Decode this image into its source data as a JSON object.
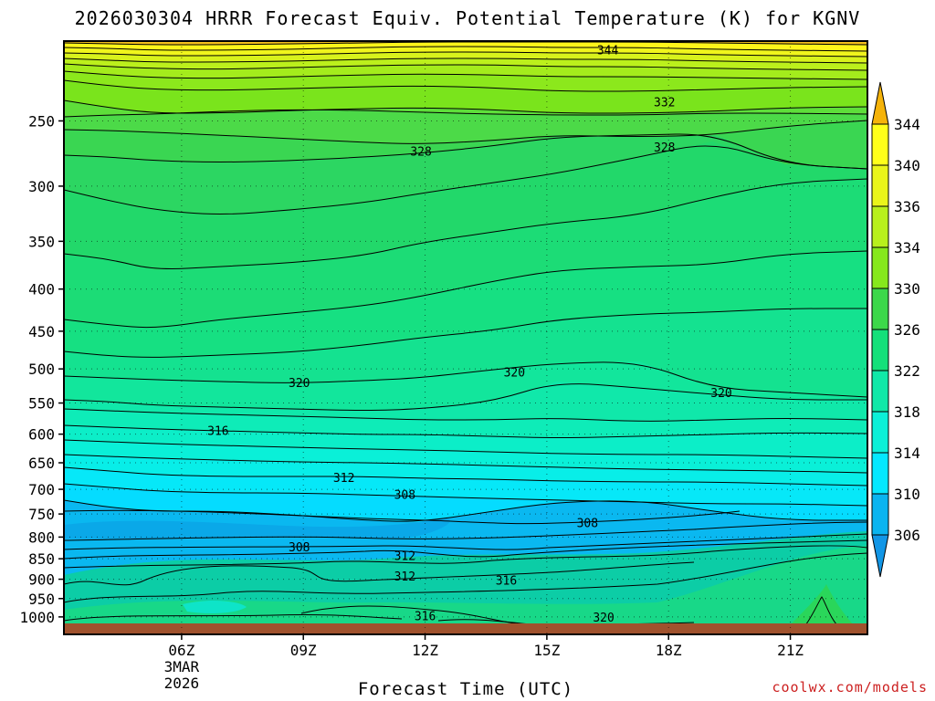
{
  "chart_data": {
    "type": "heatmap",
    "title": "2026030304 HRRR Forecast Equiv. Potential Temperature (K) for KGNV",
    "xlabel": "Forecast Time (UTC)",
    "ylabel": "",
    "x_ticks": [
      "06Z",
      "09Z",
      "12Z",
      "15Z",
      "18Z",
      "21Z"
    ],
    "x_tick_date": [
      "3MAR",
      "2026"
    ],
    "x_range_hours": [
      3.1,
      22.9
    ],
    "y_ticks": [
      250,
      300,
      350,
      400,
      450,
      500,
      550,
      600,
      650,
      700,
      750,
      800,
      850,
      900,
      950,
      1000
    ],
    "y_range_hpa": [
      200,
      1050
    ],
    "y_scale": "log",
    "grid": true,
    "colorbar": {
      "labels": [
        344,
        340,
        336,
        334,
        330,
        326,
        322,
        318,
        314,
        310,
        306
      ],
      "colors": [
        "#f5b30a",
        "#ffff1a",
        "#eaf51a",
        "#b8f01c",
        "#86e81c",
        "#3cd84a",
        "#14e07a",
        "#10e8a8",
        "#0cf0d8",
        "#05e8ff",
        "#0ab4f0",
        "#1296e6"
      ],
      "position": "right"
    },
    "contour_labels": [
      {
        "value": 344,
        "hour": 16.5,
        "hpa": 205
      },
      {
        "value": 332,
        "hour": 17.9,
        "hpa": 237
      },
      {
        "value": 328,
        "hour": 11.9,
        "hpa": 272
      },
      {
        "value": 328,
        "hour": 17.9,
        "hpa": 269
      },
      {
        "value": 320,
        "hour": 8.9,
        "hpa": 519
      },
      {
        "value": 320,
        "hour": 14.2,
        "hpa": 504
      },
      {
        "value": 320,
        "hour": 19.3,
        "hpa": 534
      },
      {
        "value": 316,
        "hour": 6.9,
        "hpa": 594
      },
      {
        "value": 312,
        "hour": 10.0,
        "hpa": 677
      },
      {
        "value": 308,
        "hour": 11.5,
        "hpa": 710
      },
      {
        "value": 308,
        "hour": 16.0,
        "hpa": 768
      },
      {
        "value": 308,
        "hour": 8.9,
        "hpa": 822
      },
      {
        "value": 312,
        "hour": 11.5,
        "hpa": 842
      },
      {
        "value": 312,
        "hour": 11.5,
        "hpa": 892
      },
      {
        "value": 316,
        "hour": 14.0,
        "hpa": 902
      },
      {
        "value": 316,
        "hour": 12.0,
        "hpa": 997
      },
      {
        "value": 320,
        "hour": 16.4,
        "hpa": 1000
      }
    ],
    "ground_color": "#a0522d"
  },
  "credit": "coolwx.com/models"
}
